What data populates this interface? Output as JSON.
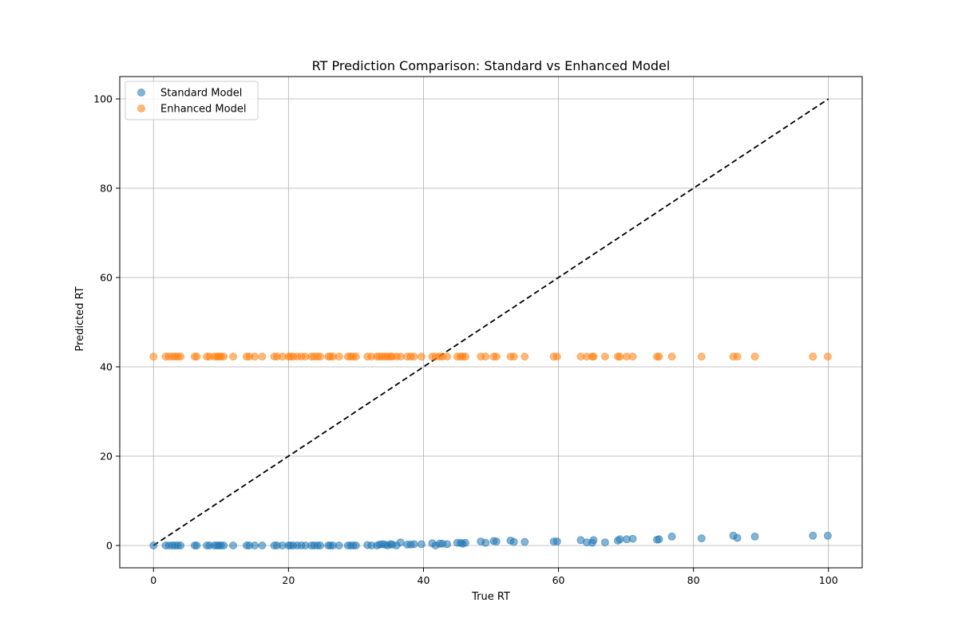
{
  "chart_data": {
    "type": "scatter",
    "title": "RT Prediction Comparison: Standard vs Enhanced Model",
    "xlabel": "True RT",
    "ylabel": "Predicted RT",
    "xlim": [
      -5,
      105
    ],
    "ylim": [
      -5,
      105
    ],
    "xticks": [
      0,
      20,
      40,
      60,
      80,
      100
    ],
    "yticks": [
      0,
      20,
      40,
      60,
      80,
      100
    ],
    "grid": true,
    "legend_position": "top-left",
    "reference_line": {
      "from": [
        0,
        0
      ],
      "to": [
        100,
        100
      ],
      "style": "dashed",
      "color": "#000000"
    },
    "x": [
      0.0,
      1.8,
      2.3,
      2.8,
      3.2,
      3.6,
      4.0,
      6.1,
      6.4,
      7.9,
      8.3,
      9.0,
      9.4,
      9.7,
      10.0,
      10.4,
      11.8,
      13.8,
      14.2,
      15.0,
      16.1,
      17.9,
      18.3,
      19.1,
      20.0,
      20.3,
      20.7,
      21.3,
      21.9,
      22.5,
      23.4,
      23.8,
      24.3,
      24.7,
      25.9,
      26.2,
      26.6,
      27.5,
      28.8,
      29.2,
      29.6,
      30.0,
      31.7,
      32.3,
      33.1,
      33.5,
      33.9,
      34.3,
      34.7,
      35.1,
      35.4,
      36.0,
      36.6,
      37.6,
      38.1,
      38.6,
      39.7,
      41.3,
      41.8,
      42.4,
      42.8,
      43.5,
      45.0,
      45.5,
      45.8,
      46.2,
      48.5,
      49.2,
      50.4,
      50.8,
      52.9,
      53.4,
      55.0,
      59.3,
      59.8,
      63.3,
      64.2,
      65.0,
      65.2,
      66.9,
      68.8,
      69.1,
      70.1,
      71.0,
      74.6,
      74.9,
      76.8,
      81.2,
      85.9,
      86.5,
      89.1,
      97.7,
      99.9
    ],
    "series": [
      {
        "name": "Standard Model",
        "color": "#1f77b4",
        "values": [
          0.0,
          0.0,
          0.0,
          0.0,
          0.0,
          0.0,
          0.0,
          0.0,
          0.0,
          0.0,
          0.0,
          0.0,
          0.0,
          0.0,
          0.0,
          0.0,
          0.0,
          0.0,
          0.0,
          0.0,
          0.0,
          0.0,
          0.0,
          0.0,
          0.0,
          0.0,
          0.0,
          0.0,
          0.0,
          0.0,
          0.0,
          0.0,
          0.0,
          0.0,
          0.0,
          0.0,
          0.0,
          0.0,
          0.0,
          0.0,
          0.0,
          0.0,
          0.1,
          0.0,
          0.0,
          0.2,
          0.3,
          0.2,
          0.0,
          0.3,
          0.2,
          0.0,
          0.7,
          0.2,
          0.2,
          0.3,
          0.3,
          0.5,
          0.0,
          0.4,
          0.4,
          0.3,
          0.6,
          0.6,
          0.4,
          0.6,
          0.9,
          0.6,
          1.0,
          0.9,
          1.1,
          0.8,
          0.8,
          0.9,
          0.9,
          1.2,
          0.7,
          0.6,
          1.2,
          0.7,
          1.1,
          1.4,
          1.4,
          1.5,
          1.3,
          1.4,
          2.0,
          1.6,
          2.2,
          1.7,
          2.0,
          2.2,
          2.2
        ]
      },
      {
        "name": "Enhanced Model",
        "color": "#ff7f0e",
        "values": [
          42.3,
          42.3,
          42.3,
          42.3,
          42.3,
          42.3,
          42.3,
          42.3,
          42.3,
          42.3,
          42.3,
          42.3,
          42.3,
          42.3,
          42.3,
          42.3,
          42.3,
          42.3,
          42.3,
          42.3,
          42.3,
          42.3,
          42.3,
          42.3,
          42.3,
          42.3,
          42.3,
          42.3,
          42.3,
          42.3,
          42.3,
          42.3,
          42.3,
          42.3,
          42.3,
          42.3,
          42.3,
          42.3,
          42.3,
          42.3,
          42.3,
          42.3,
          42.3,
          42.3,
          42.3,
          42.3,
          42.3,
          42.3,
          42.3,
          42.3,
          42.3,
          42.3,
          42.3,
          42.3,
          42.3,
          42.3,
          42.3,
          42.3,
          42.3,
          42.3,
          42.3,
          42.3,
          42.3,
          42.3,
          42.3,
          42.3,
          42.3,
          42.3,
          42.3,
          42.3,
          42.3,
          42.3,
          42.3,
          42.3,
          42.3,
          42.3,
          42.3,
          42.3,
          42.3,
          42.3,
          42.3,
          42.3,
          42.3,
          42.3,
          42.3,
          42.3,
          42.3,
          42.3,
          42.3,
          42.3,
          42.3,
          42.3,
          42.3
        ]
      }
    ]
  }
}
